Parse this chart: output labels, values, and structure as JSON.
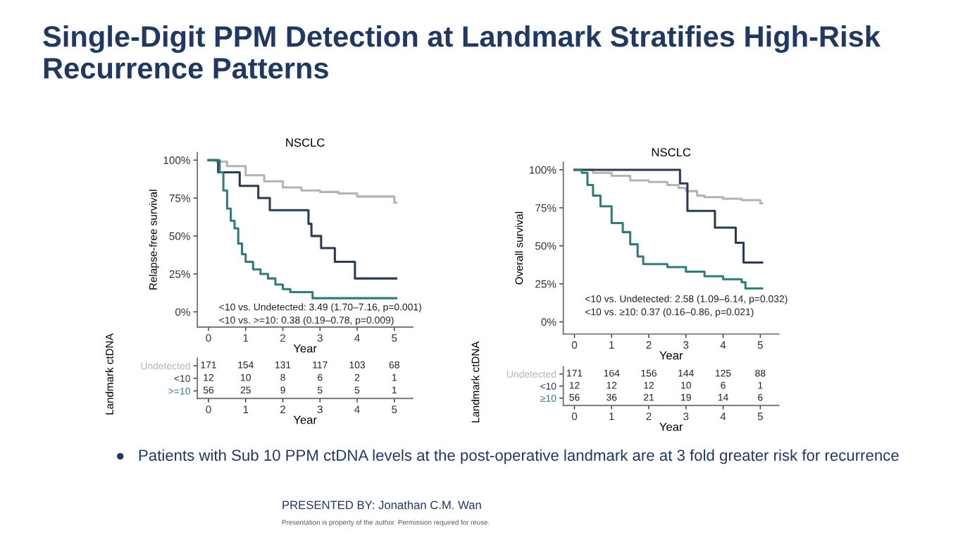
{
  "chart_data": [
    {
      "type": "other",
      "title": "Single-Digit PPM Detection at Landmark Stratifies High-Risk Recurrence Patterns",
      "annotations": [
        "●   Patients with Sub 10 PPM ctDNA levels at the post-operative landmark are at 3 fold greater risk for recurrence",
        "PRESENTED BY: Jonathan C.M. Wan",
        "Presentation is property of the author. Permission required for reuse."
      ]
    },
    {
      "type": "step",
      "title": "NSCLC",
      "xlabel": "Year",
      "ylabel": "Relapse-free survival",
      "xlim": [
        -0.3,
        5.5
      ],
      "ylim": [
        -10,
        105
      ],
      "xticks": [
        0,
        1,
        2,
        3,
        4,
        5
      ],
      "yticks": [
        {
          "value": 0,
          "label": "0%"
        },
        {
          "value": 25,
          "label": "25%"
        },
        {
          "value": 50,
          "label": "50%"
        },
        {
          "value": 75,
          "label": "75%"
        },
        {
          "value": 100,
          "label": "100%"
        }
      ],
      "series": [
        {
          "color": "#b3b3b3",
          "x": [
            0,
            0.2,
            0.5,
            1,
            1.5,
            2,
            2.5,
            3,
            3.5,
            4,
            4.5,
            5,
            5.05
          ],
          "values": [
            100,
            99,
            96,
            90,
            86,
            82,
            80,
            79,
            78,
            76,
            76,
            72,
            72
          ]
        },
        {
          "color": "#2b3a55",
          "x": [
            0,
            0.26,
            0.84,
            1.34,
            1.65,
            2.69,
            2.77,
            3.03,
            3.4,
            3.94,
            5.05
          ],
          "values": [
            100,
            92,
            83,
            75,
            67,
            58,
            50,
            42,
            33,
            22,
            22
          ]
        },
        {
          "color": "#2e7d7a",
          "x": [
            0,
            0.25,
            0.3,
            0.4,
            0.5,
            0.6,
            0.7,
            0.8,
            0.9,
            1,
            1.2,
            1.4,
            1.6,
            1.8,
            2,
            2.2,
            2.8,
            5.05
          ],
          "values": [
            100,
            100,
            92,
            80,
            68,
            60,
            55,
            45,
            38,
            33,
            28,
            25,
            22,
            18,
            15,
            13,
            9,
            9
          ]
        }
      ],
      "annotations": [
        "<10 vs. Undetected: 3.49 (1.70–7.16, p=0.001)",
        "<10 vs. >=10: 0.38 (0.19–0.78, p=0.009)"
      ]
    },
    {
      "type": "heatmap",
      "xlabel": "Year",
      "ylabel": "Landmark ctDNA",
      "categories": [
        "0",
        "1",
        "2",
        "3",
        "4",
        "5"
      ],
      "y_categories": [
        "Undetected",
        "<10",
        ">=10"
      ],
      "data_labels": true,
      "colors": [
        "#b3b3b3",
        "#2b3a55",
        "#2e7d7a"
      ],
      "cells": [
        [
          171,
          154,
          131,
          117,
          103,
          68
        ],
        [
          12,
          10,
          8,
          6,
          2,
          1
        ],
        [
          56,
          25,
          9,
          5,
          5,
          1
        ]
      ]
    },
    {
      "type": "step",
      "title": "NSCLC",
      "xlabel": "Year",
      "ylabel": "Overall survival",
      "xlim": [
        -0.3,
        5.5
      ],
      "ylim": [
        -8,
        105
      ],
      "xticks": [
        0,
        1,
        2,
        3,
        4,
        5
      ],
      "yticks": [
        {
          "value": 0,
          "label": "0%"
        },
        {
          "value": 25,
          "label": "25%"
        },
        {
          "value": 50,
          "label": "50%"
        },
        {
          "value": 75,
          "label": "75%"
        },
        {
          "value": 100,
          "label": "100%"
        }
      ],
      "series": [
        {
          "color": "#b3b3b3",
          "x": [
            0,
            0.5,
            1,
            1.5,
            2,
            2.5,
            2.8,
            3,
            3.3,
            3.5,
            4,
            4.5,
            5,
            5.05
          ],
          "values": [
            100,
            98,
            96,
            93,
            92,
            90,
            88,
            86,
            83,
            82,
            81,
            80,
            78,
            78
          ]
        },
        {
          "color": "#2b3a55",
          "x": [
            0,
            2.84,
            3.04,
            3.78,
            4.34,
            4.55,
            5.05
          ],
          "values": [
            100,
            91,
            73,
            62,
            52,
            39,
            39
          ]
        },
        {
          "color": "#2e7d7a",
          "x": [
            0,
            0.2,
            0.35,
            0.5,
            0.7,
            1,
            1.3,
            1.5,
            1.7,
            1.85,
            2.5,
            3,
            3.5,
            4,
            4.5,
            4.6,
            5.05
          ],
          "values": [
            100,
            98,
            90,
            83,
            76,
            65,
            59,
            51,
            43,
            38,
            36,
            33,
            30,
            28,
            26,
            22,
            22
          ]
        }
      ],
      "annotations": [
        "<10 vs. Undetected: 2.58 (1.09–6.14, p=0.032)",
        "<10 vs. ≥10: 0.37 (0.16–0.86, p=0.021)"
      ]
    },
    {
      "type": "heatmap",
      "xlabel": "Year",
      "ylabel": "Landmark ctDNA",
      "categories": [
        "0",
        "1",
        "2",
        "3",
        "4",
        "5"
      ],
      "y_categories": [
        "Undetected",
        "<10",
        "≥10"
      ],
      "data_labels": true,
      "colors": [
        "#b3b3b3",
        "#2b3a55",
        "#2e7d7a"
      ],
      "cells": [
        [
          171,
          164,
          156,
          144,
          125,
          88
        ],
        [
          12,
          12,
          12,
          10,
          6,
          1
        ],
        [
          56,
          36,
          21,
          19,
          14,
          6
        ]
      ]
    }
  ]
}
